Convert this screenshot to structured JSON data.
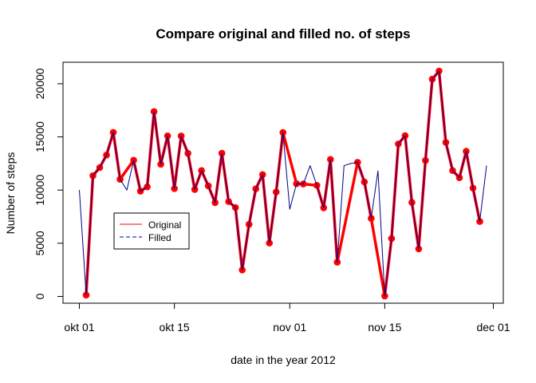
{
  "chart_data": {
    "type": "line",
    "title": "Compare original and filled no. of steps",
    "xlabel": "date in the year 2012",
    "ylabel": "Number of steps",
    "x_axis": {
      "type": "date",
      "range": [
        "2012-10-01",
        "2012-11-30"
      ],
      "ticks": [
        {
          "date": "2012-10-01",
          "label": "okt 01"
        },
        {
          "date": "2012-10-15",
          "label": "okt 15"
        },
        {
          "date": "2012-11-01",
          "label": "nov 01"
        },
        {
          "date": "2012-11-15",
          "label": "nov 15"
        },
        {
          "date": "2012-12-01",
          "label": "dec 01"
        }
      ]
    },
    "y_axis": {
      "range": [
        0,
        21194
      ],
      "ticks": [
        {
          "value": 0,
          "label": "0"
        },
        {
          "value": 5000,
          "label": "5000"
        },
        {
          "value": 10000,
          "label": "10000"
        },
        {
          "value": 15000,
          "label": "15000"
        },
        {
          "value": 20000,
          "label": "20000"
        }
      ]
    },
    "grid": false,
    "legend": {
      "placement": "center-left",
      "entries": [
        {
          "label": "Original",
          "color": "#ff0000",
          "style": "solid"
        },
        {
          "label": "Filled",
          "color": "#00008b",
          "style": "dashed"
        }
      ]
    },
    "series": [
      {
        "name": "Original",
        "color": "#ff0000",
        "marker": "filled-circle",
        "x": [
          "2012-10-02",
          "2012-10-03",
          "2012-10-04",
          "2012-10-05",
          "2012-10-06",
          "2012-10-07",
          "2012-10-09",
          "2012-10-10",
          "2012-10-11",
          "2012-10-12",
          "2012-10-13",
          "2012-10-14",
          "2012-10-15",
          "2012-10-16",
          "2012-10-17",
          "2012-10-18",
          "2012-10-19",
          "2012-10-20",
          "2012-10-21",
          "2012-10-22",
          "2012-10-23",
          "2012-10-24",
          "2012-10-25",
          "2012-10-26",
          "2012-10-27",
          "2012-10-28",
          "2012-10-29",
          "2012-10-30",
          "2012-10-31",
          "2012-11-02",
          "2012-11-03",
          "2012-11-05",
          "2012-11-06",
          "2012-11-07",
          "2012-11-08",
          "2012-11-11",
          "2012-11-12",
          "2012-11-13",
          "2012-11-15",
          "2012-11-16",
          "2012-11-17",
          "2012-11-18",
          "2012-11-19",
          "2012-11-20",
          "2012-11-21",
          "2012-11-22",
          "2012-11-23",
          "2012-11-24",
          "2012-11-25",
          "2012-11-26",
          "2012-11-27",
          "2012-11-28",
          "2012-11-29"
        ],
        "values": [
          126,
          11352,
          12116,
          13294,
          15420,
          11015,
          12811,
          9900,
          10304,
          17382,
          12426,
          15098,
          10139,
          15084,
          13452,
          10056,
          11829,
          10395,
          8821,
          13460,
          8918,
          8355,
          2492,
          6778,
          10119,
          11458,
          5018,
          9819,
          15414,
          10600,
          10571,
          10439,
          8334,
          12883,
          3219,
          12608,
          10765,
          7336,
          41,
          5441,
          14339,
          15110,
          8841,
          4472,
          12787,
          20427,
          21194,
          14478,
          11834,
          11162,
          13646,
          10183,
          7047
        ]
      },
      {
        "name": "Filled",
        "color": "#00008b",
        "x": [
          "2012-10-01",
          "2012-10-02",
          "2012-10-03",
          "2012-10-04",
          "2012-10-05",
          "2012-10-06",
          "2012-10-07",
          "2012-10-08",
          "2012-10-09",
          "2012-10-10",
          "2012-10-11",
          "2012-10-12",
          "2012-10-13",
          "2012-10-14",
          "2012-10-15",
          "2012-10-16",
          "2012-10-17",
          "2012-10-18",
          "2012-10-19",
          "2012-10-20",
          "2012-10-21",
          "2012-10-22",
          "2012-10-23",
          "2012-10-24",
          "2012-10-25",
          "2012-10-26",
          "2012-10-27",
          "2012-10-28",
          "2012-10-29",
          "2012-10-30",
          "2012-10-31",
          "2012-11-01",
          "2012-11-02",
          "2012-11-03",
          "2012-11-04",
          "2012-11-05",
          "2012-11-06",
          "2012-11-07",
          "2012-11-08",
          "2012-11-09",
          "2012-11-10",
          "2012-11-11",
          "2012-11-12",
          "2012-11-13",
          "2012-11-14",
          "2012-11-15",
          "2012-11-16",
          "2012-11-17",
          "2012-11-18",
          "2012-11-19",
          "2012-11-20",
          "2012-11-21",
          "2012-11-22",
          "2012-11-23",
          "2012-11-24",
          "2012-11-25",
          "2012-11-26",
          "2012-11-27",
          "2012-11-28",
          "2012-11-29",
          "2012-11-30"
        ],
        "values": [
          10000,
          126,
          11352,
          12116,
          13294,
          15420,
          11015,
          10000,
          12811,
          9900,
          10304,
          17382,
          12426,
          15098,
          10139,
          15084,
          13452,
          10056,
          11829,
          10395,
          8821,
          13460,
          8918,
          8355,
          2492,
          6778,
          10119,
          11458,
          5018,
          9819,
          15414,
          8200,
          10600,
          10571,
          12300,
          10439,
          8334,
          12883,
          3219,
          12300,
          12500,
          12608,
          10765,
          7336,
          11800,
          41,
          5441,
          14339,
          15110,
          8841,
          4472,
          12787,
          20427,
          21194,
          14478,
          11834,
          11162,
          13646,
          10183,
          7047,
          12300
        ]
      }
    ]
  }
}
